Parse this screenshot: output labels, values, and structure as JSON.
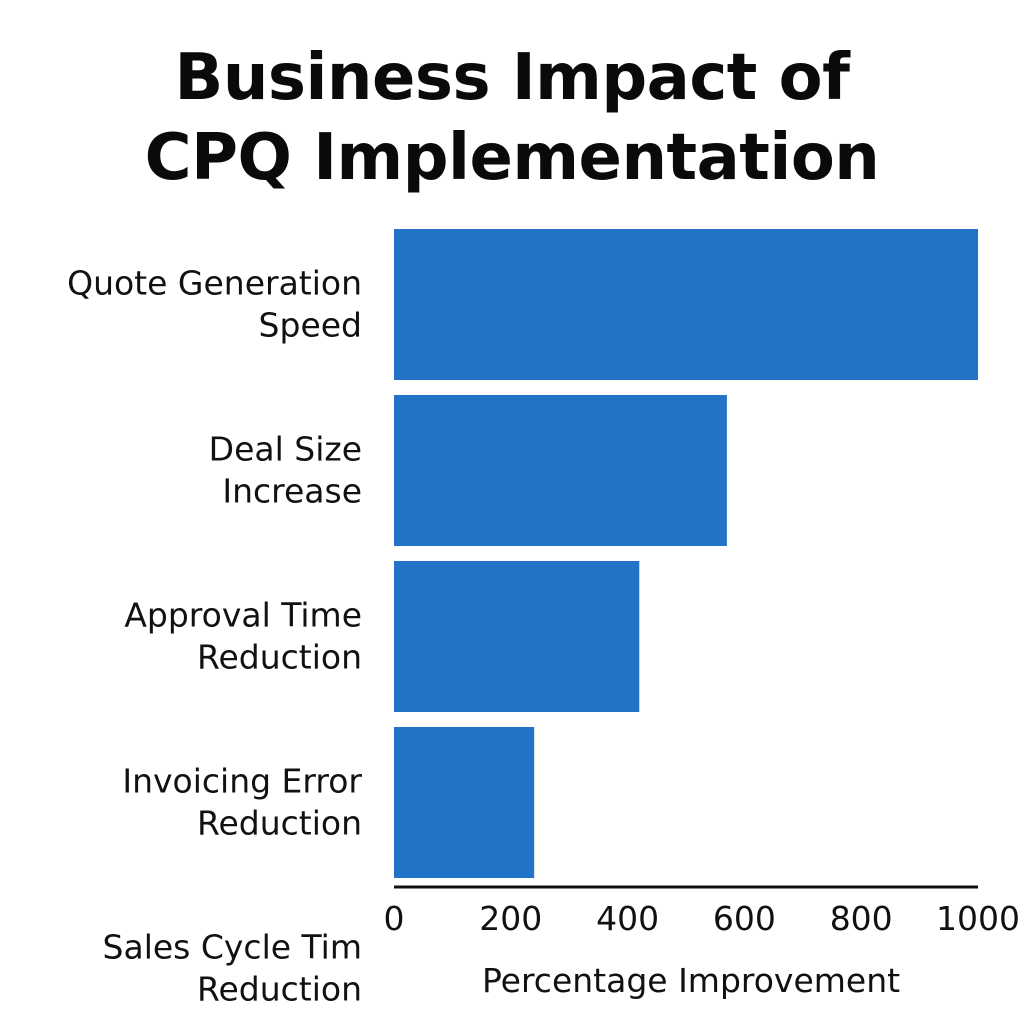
{
  "chart_data": {
    "type": "bar",
    "orientation": "horizontal",
    "title": "Business Impact of\nCPQ Implementation",
    "xlabel": "Percentage Improvement",
    "ylabel": "",
    "categories": [
      "Quote Generation\nSpeed",
      "Deal Size\nIncrease",
      "Approval Time\nReduction",
      "Invoicing Error\nReduction",
      "Sales Cycle Tim\nReduction"
    ],
    "values": [
      1000,
      570,
      420,
      240,
      0
    ],
    "xlim": [
      0,
      1000
    ],
    "xticks": [
      "0",
      "200",
      "400",
      "600",
      "800",
      "1000"
    ],
    "grid": false,
    "legend": "none",
    "colors": {
      "bar": "#2272c8",
      "axis": "#111111"
    }
  }
}
